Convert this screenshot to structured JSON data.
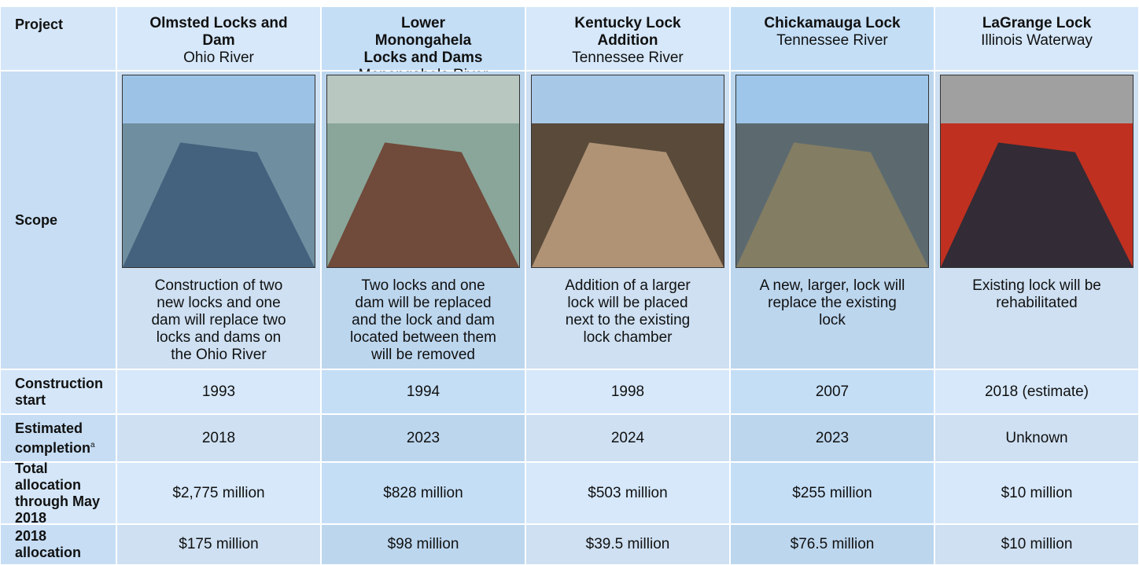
{
  "header": {
    "label": "Project"
  },
  "row_labels": {
    "scope": "Scope",
    "construction_start": "Construction start",
    "estimated_completion": "Estimated completion",
    "estimated_completion_note": "a",
    "total_allocation": "Total allocation through May 2018",
    "allocation_2018": "2018 allocation"
  },
  "projects": [
    {
      "name": "Olmsted Locks and Dam",
      "river": "Ohio River",
      "scope": "Construction of two new locks and one dam will replace two locks and dams on the Ohio River",
      "construction_start": "1993",
      "estimated_completion": "2018",
      "total_allocation": "$2,775 million",
      "allocation_2018": "$175 million"
    },
    {
      "name": "Lower Monongahela Locks and Dams",
      "river": "Monongahela River",
      "scope": "Two locks and one dam will be replaced and the lock and dam located between them will be removed",
      "construction_start": "1994",
      "estimated_completion": "2023",
      "total_allocation": "$828 million",
      "allocation_2018": "$98 million"
    },
    {
      "name": "Kentucky Lock Addition",
      "river": "Tennessee River",
      "scope": "Addition of a larger lock will be placed next to the existing lock chamber",
      "construction_start": "1998",
      "estimated_completion": "2024",
      "total_allocation": "$503 million",
      "allocation_2018": "$39.5 million"
    },
    {
      "name": "Chickamauga Lock",
      "river": "Tennessee River",
      "scope": "A new, larger, lock will replace the existing lock",
      "construction_start": "2007",
      "estimated_completion": "2023",
      "total_allocation": "$255 million",
      "allocation_2018": "$76.5 million"
    },
    {
      "name": "LaGrange Lock",
      "river": "Illinois Waterway",
      "scope": "Existing lock will be rehabilitated",
      "construction_start": "2018 (estimate)",
      "estimated_completion": "Unknown",
      "total_allocation": "$10 million",
      "allocation_2018": "$10 million"
    }
  ]
}
